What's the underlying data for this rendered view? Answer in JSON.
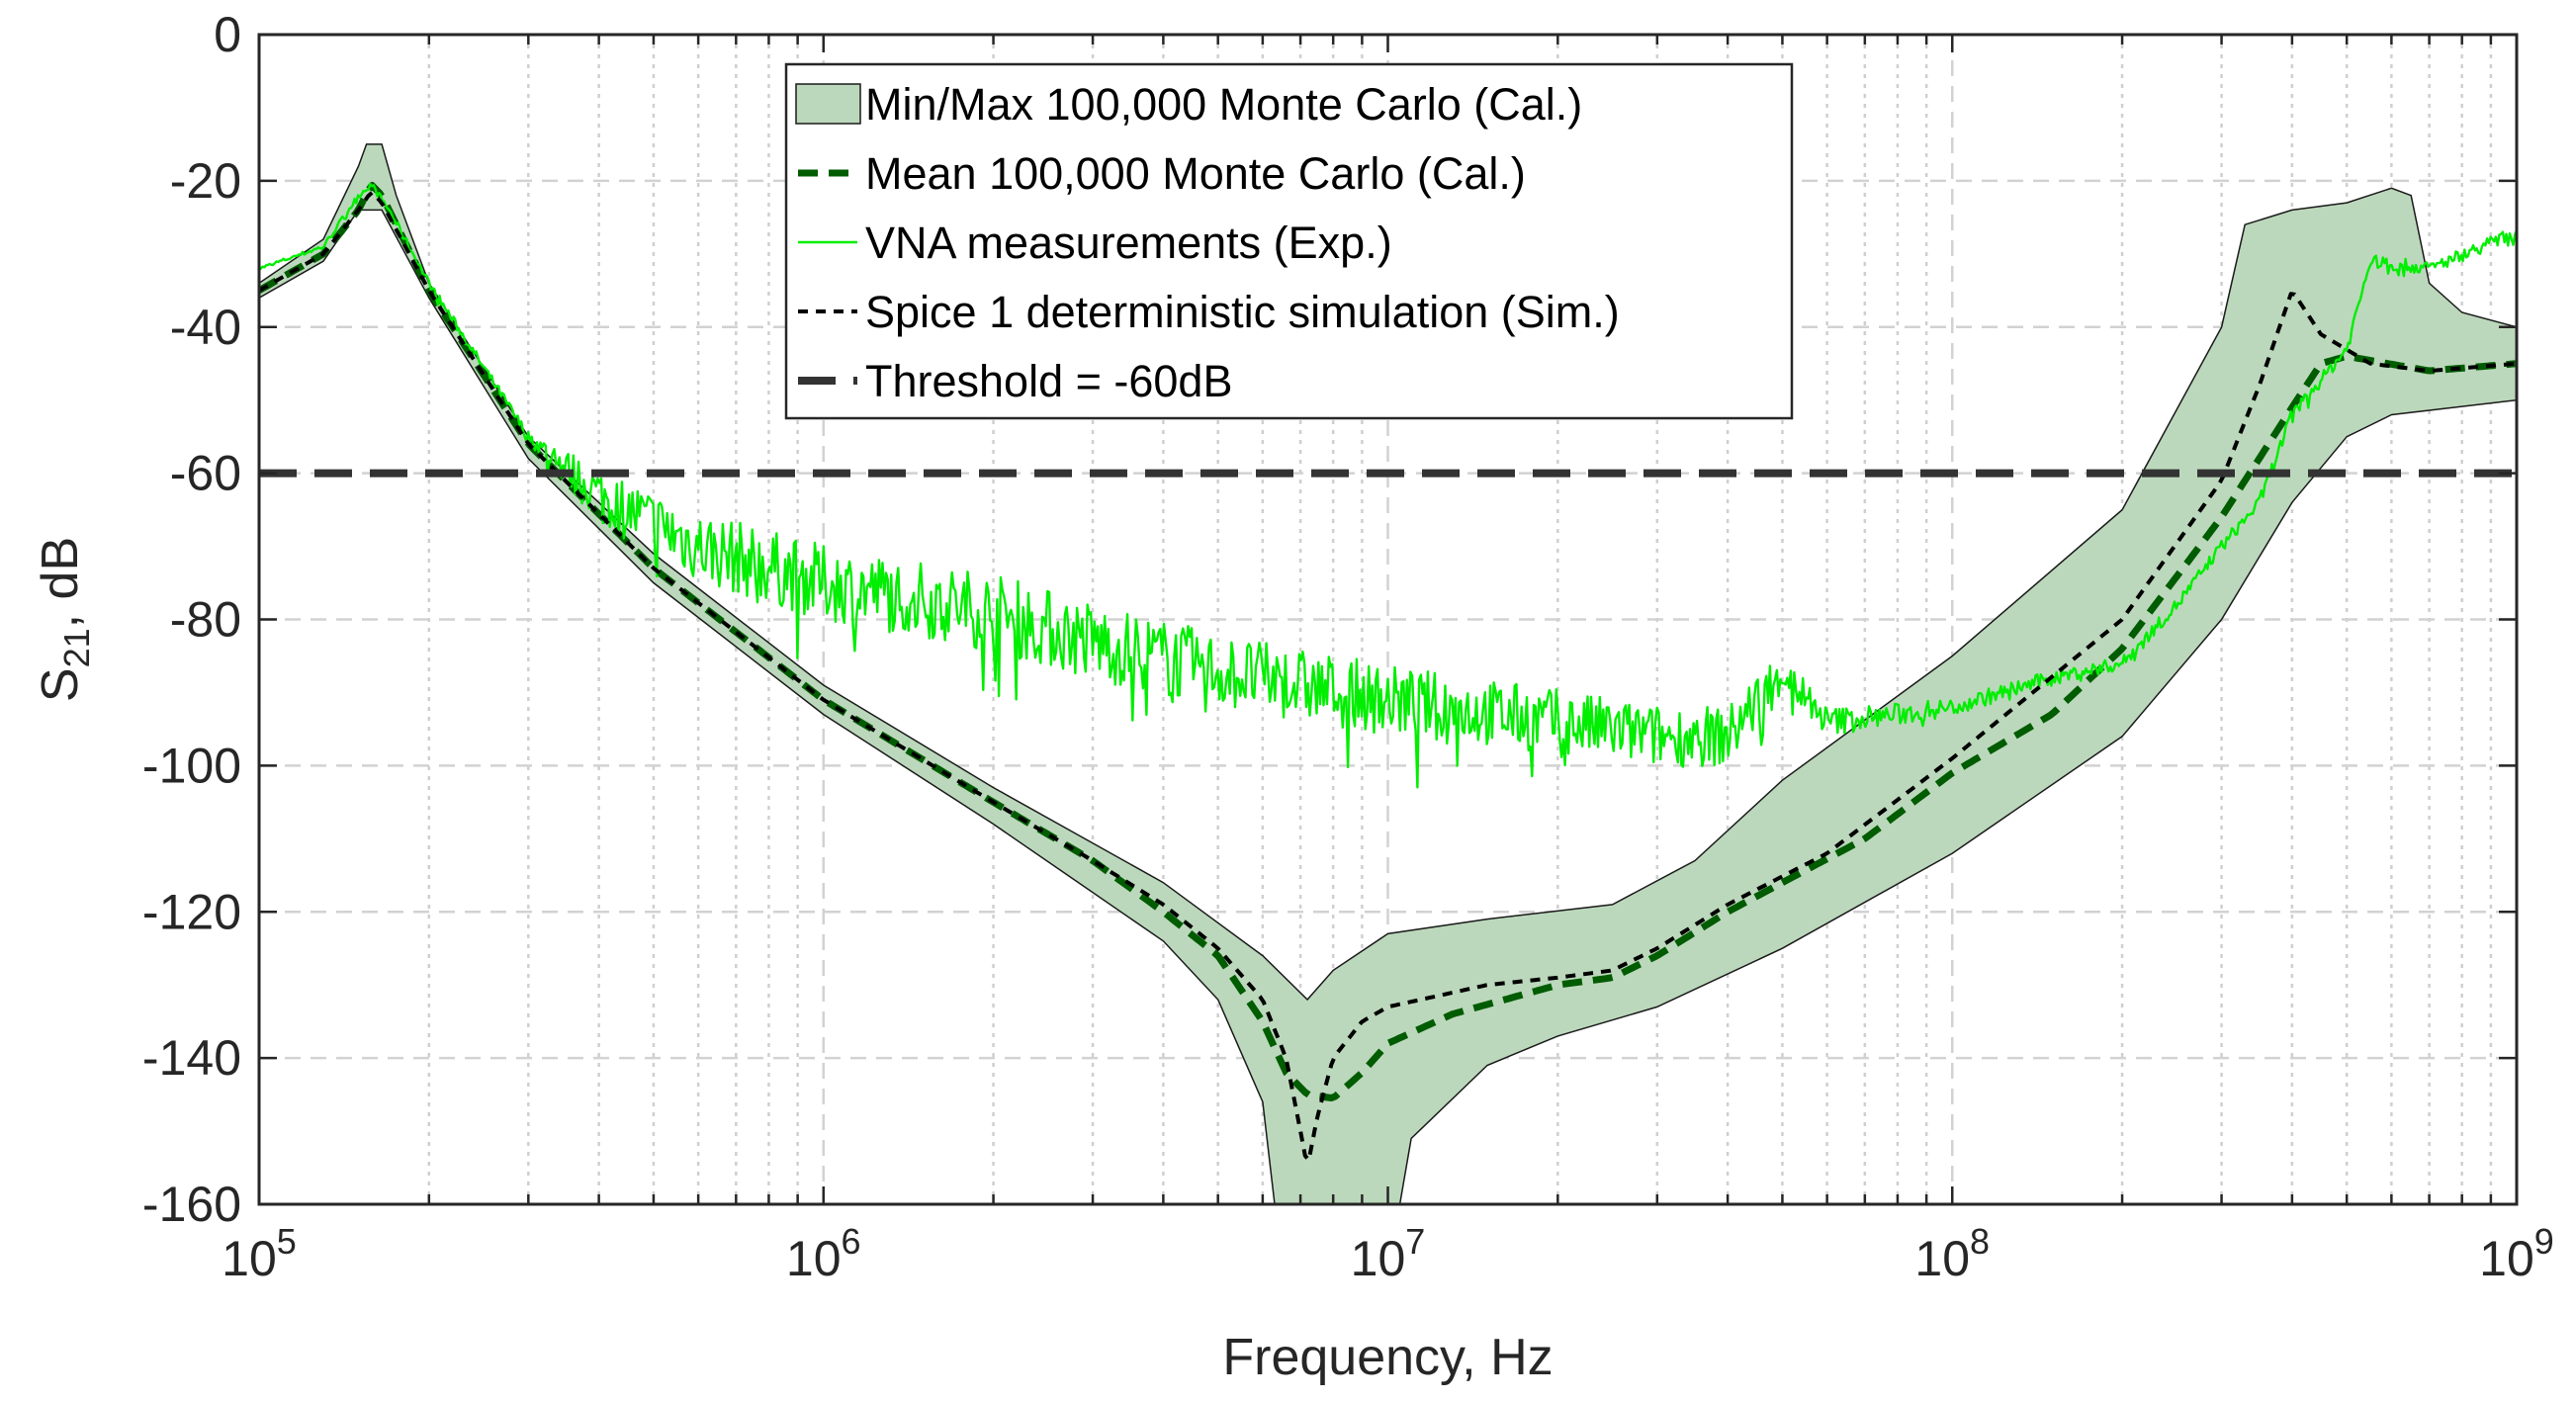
{
  "chart_data": {
    "type": "line",
    "xlabel": "Frequency, Hz",
    "ylabel": {
      "main": "S",
      "sub": "21",
      "rest": ", dB"
    },
    "xscale": "log",
    "xlim": [
      100000,
      1000000000
    ],
    "ylim": [
      -160,
      0
    ],
    "grid": true,
    "legend_position": "top-center",
    "x_ticks": [
      {
        "value": 100000,
        "base": "10",
        "exp": "5"
      },
      {
        "value": 1000000,
        "base": "10",
        "exp": "6"
      },
      {
        "value": 10000000,
        "base": "10",
        "exp": "7"
      },
      {
        "value": 100000000,
        "base": "10",
        "exp": "8"
      },
      {
        "value": 1000000000,
        "base": "10",
        "exp": "9"
      }
    ],
    "y_ticks": [
      {
        "value": 0,
        "label": "0"
      },
      {
        "value": -20,
        "label": "-20"
      },
      {
        "value": -40,
        "label": "-40"
      },
      {
        "value": -60,
        "label": "-60"
      },
      {
        "value": -80,
        "label": "-80"
      },
      {
        "value": -100,
        "label": "-100"
      },
      {
        "value": -120,
        "label": "-120"
      },
      {
        "value": -140,
        "label": "-140"
      },
      {
        "value": -160,
        "label": "-160"
      }
    ],
    "series": [
      {
        "name": "Min/Max 100,000 Monte Carlo (Cal.)",
        "kind": "band",
        "color": "#bcd8bc",
        "edge_color": "#1a1a1a",
        "upper": [
          [
            100000,
            -34
          ],
          [
            130000,
            -28
          ],
          [
            150000,
            -18
          ],
          [
            155000,
            -15
          ],
          [
            165000,
            -15
          ],
          [
            175000,
            -22
          ],
          [
            200000,
            -34
          ],
          [
            300000,
            -55
          ],
          [
            500000,
            -71
          ],
          [
            1000000,
            -89
          ],
          [
            2000000,
            -103
          ],
          [
            4000000,
            -116
          ],
          [
            6000000,
            -126
          ],
          [
            7200000,
            -132
          ],
          [
            8000000,
            -128
          ],
          [
            10000000,
            -123
          ],
          [
            15000000,
            -121
          ],
          [
            25000000,
            -119
          ],
          [
            35000000,
            -113
          ],
          [
            50000000,
            -102
          ],
          [
            100000000,
            -85
          ],
          [
            200000000,
            -65
          ],
          [
            300000000,
            -40
          ],
          [
            330000000,
            -26
          ],
          [
            400000000,
            -24
          ],
          [
            500000000,
            -23
          ],
          [
            600000000,
            -21
          ],
          [
            650000000,
            -22
          ],
          [
            700000000,
            -34
          ],
          [
            800000000,
            -38
          ],
          [
            1000000000,
            -40
          ]
        ],
        "lower": [
          [
            100000,
            -36
          ],
          [
            130000,
            -31
          ],
          [
            150000,
            -24
          ],
          [
            165000,
            -24
          ],
          [
            200000,
            -36
          ],
          [
            300000,
            -58
          ],
          [
            500000,
            -75
          ],
          [
            1000000,
            -93
          ],
          [
            2000000,
            -108
          ],
          [
            4000000,
            -124
          ],
          [
            5000000,
            -132
          ],
          [
            6000000,
            -146
          ],
          [
            6300000,
            -160
          ],
          [
            10500000,
            -160
          ],
          [
            11000000,
            -151
          ],
          [
            15000000,
            -141
          ],
          [
            20000000,
            -137
          ],
          [
            30000000,
            -133
          ],
          [
            50000000,
            -125
          ],
          [
            100000000,
            -112
          ],
          [
            200000000,
            -96
          ],
          [
            300000000,
            -80
          ],
          [
            400000000,
            -64
          ],
          [
            500000000,
            -55
          ],
          [
            600000000,
            -52
          ],
          [
            1000000000,
            -50
          ]
        ]
      },
      {
        "name": "Mean 100,000 Monte Carlo (Cal.)",
        "kind": "line",
        "color": "#005c00",
        "dash": "20 11",
        "width": 7,
        "points": [
          [
            100000,
            -35
          ],
          [
            130000,
            -30
          ],
          [
            150000,
            -24
          ],
          [
            158000,
            -20.5
          ],
          [
            165000,
            -22
          ],
          [
            200000,
            -35
          ],
          [
            300000,
            -56
          ],
          [
            500000,
            -73
          ],
          [
            1000000,
            -91
          ],
          [
            2000000,
            -105
          ],
          [
            3000000,
            -113
          ],
          [
            4000000,
            -120
          ],
          [
            5000000,
            -126
          ],
          [
            6000000,
            -135
          ],
          [
            6600000,
            -142
          ],
          [
            7200000,
            -145
          ],
          [
            8000000,
            -145.5
          ],
          [
            9000000,
            -142
          ],
          [
            10000000,
            -138
          ],
          [
            13000000,
            -134
          ],
          [
            20000000,
            -130
          ],
          [
            25000000,
            -129
          ],
          [
            30000000,
            -126
          ],
          [
            40000000,
            -120
          ],
          [
            50000000,
            -116
          ],
          [
            70000000,
            -110
          ],
          [
            100000000,
            -101
          ],
          [
            150000000,
            -93
          ],
          [
            200000000,
            -84
          ],
          [
            300000000,
            -66
          ],
          [
            400000000,
            -51
          ],
          [
            450000000,
            -45
          ],
          [
            500000000,
            -44
          ],
          [
            700000000,
            -46
          ],
          [
            1000000000,
            -45
          ]
        ]
      },
      {
        "name": "VNA measurements (Exp.)",
        "kind": "noisy-line",
        "color": "#00ee00",
        "width": 2.4,
        "points": [
          [
            100000,
            -32
          ],
          [
            130000,
            -29
          ],
          [
            150000,
            -22
          ],
          [
            158000,
            -20.5
          ],
          [
            170000,
            -24
          ],
          [
            200000,
            -34
          ],
          [
            300000,
            -55
          ],
          [
            400000,
            -63
          ],
          [
            600000,
            -70
          ],
          [
            1000000,
            -75
          ],
          [
            2000000,
            -79
          ],
          [
            3000000,
            -83
          ],
          [
            5000000,
            -87
          ],
          [
            10000000,
            -91
          ],
          [
            20000000,
            -94
          ],
          [
            30000000,
            -96
          ],
          [
            40000000,
            -96
          ],
          [
            50000000,
            -87
          ],
          [
            60000000,
            -94
          ],
          [
            80000000,
            -93
          ],
          [
            100000000,
            -92
          ],
          [
            150000000,
            -88
          ],
          [
            200000000,
            -86
          ],
          [
            250000000,
            -78
          ],
          [
            300000000,
            -70
          ],
          [
            350000000,
            -64
          ],
          [
            400000000,
            -52
          ],
          [
            500000000,
            -43
          ],
          [
            550000000,
            -31
          ],
          [
            700000000,
            -32
          ],
          [
            1000000000,
            -27
          ]
        ],
        "noise": [
          [
            100000,
            0.2
          ],
          [
            300000,
            0.8
          ],
          [
            400000,
            4
          ],
          [
            600000,
            5
          ],
          [
            3000000,
            5.5
          ],
          [
            6000000,
            5
          ],
          [
            20000000,
            4.5
          ],
          [
            45000000,
            4
          ],
          [
            60000000,
            2
          ],
          [
            100000000,
            1.2
          ],
          [
            200000000,
            0.9
          ],
          [
            1000000000,
            0.9
          ]
        ]
      },
      {
        "name": "Spice 1 deterministic simulation (Sim.)",
        "kind": "line",
        "color": "#000000",
        "dash": "10 8",
        "width": 4,
        "points": [
          [
            100000,
            -35
          ],
          [
            130000,
            -30
          ],
          [
            150000,
            -24
          ],
          [
            158000,
            -21.5
          ],
          [
            165000,
            -23
          ],
          [
            200000,
            -35
          ],
          [
            300000,
            -56
          ],
          [
            500000,
            -73
          ],
          [
            1000000,
            -91
          ],
          [
            2000000,
            -105
          ],
          [
            3000000,
            -113
          ],
          [
            4000000,
            -119
          ],
          [
            5000000,
            -125
          ],
          [
            6000000,
            -132
          ],
          [
            6600000,
            -140
          ],
          [
            7000000,
            -150
          ],
          [
            7200000,
            -155
          ],
          [
            7500000,
            -148
          ],
          [
            8000000,
            -140
          ],
          [
            9000000,
            -135
          ],
          [
            10000000,
            -133
          ],
          [
            15000000,
            -130
          ],
          [
            20000000,
            -129
          ],
          [
            25000000,
            -128
          ],
          [
            30000000,
            -125
          ],
          [
            40000000,
            -119
          ],
          [
            60000000,
            -112
          ],
          [
            100000000,
            -99
          ],
          [
            200000000,
            -80
          ],
          [
            300000000,
            -61
          ],
          [
            350000000,
            -48
          ],
          [
            400000000,
            -35
          ],
          [
            450000000,
            -41
          ],
          [
            550000000,
            -45
          ],
          [
            700000000,
            -46
          ],
          [
            1000000000,
            -45
          ]
        ]
      },
      {
        "name": "Threshold = -60dB",
        "kind": "hline",
        "color": "#333333",
        "dash": "38 18",
        "width": 8,
        "value": -60
      }
    ]
  }
}
